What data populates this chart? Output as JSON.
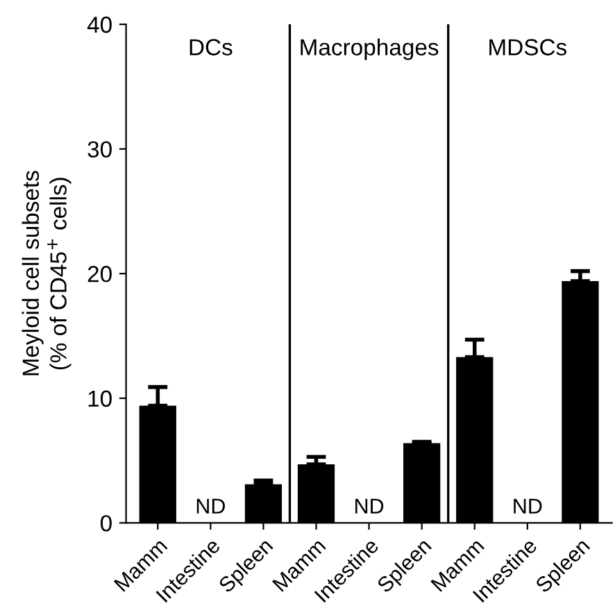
{
  "chart_data": {
    "type": "bar",
    "ylabel": "Meyloid cell subsets\n(% of CD45$^{+}$ cells)",
    "categories": [
      "Mamm",
      "Intestine",
      "Spleen",
      "Mamm",
      "Intestine",
      "Spleen",
      "Mamm",
      "Intestine",
      "Spleen"
    ],
    "values": [
      9.4,
      null,
      3.1,
      4.7,
      null,
      6.4,
      13.3,
      null,
      19.4
    ],
    "errors": [
      [
        9.4,
        10.9
      ],
      null,
      [
        3.1,
        3.4
      ],
      [
        4.7,
        5.3
      ],
      null,
      [
        6.4,
        6.5
      ],
      [
        13.3,
        14.7
      ],
      null,
      [
        19.4,
        20.2
      ]
    ],
    "value_labels": [
      null,
      "ND",
      null,
      null,
      "ND",
      null,
      null,
      "ND",
      null
    ],
    "color": "#000000",
    "ylim": [
      0,
      40
    ],
    "yticks": [
      0,
      10,
      20,
      30,
      40
    ],
    "grid": false,
    "annotations": [
      "DCs",
      "Macrophages",
      "MDSCs"
    ]
  }
}
